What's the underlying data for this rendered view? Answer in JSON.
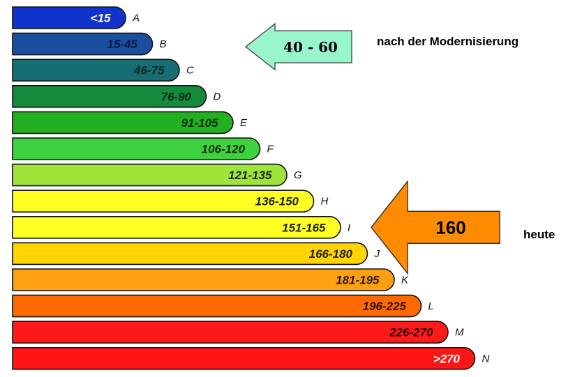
{
  "chart_data": {
    "type": "bar",
    "classes": [
      {
        "letter": "A",
        "range": "<15",
        "color": "#1133cc",
        "text_color": "#ffffff"
      },
      {
        "letter": "B",
        "range": "15-45",
        "color": "#1a4fa0",
        "text_color": "#0b1a40"
      },
      {
        "letter": "C",
        "range": "46-75",
        "color": "#176e72",
        "text_color": "#0b2a2a"
      },
      {
        "letter": "D",
        "range": "76-90",
        "color": "#138a3c",
        "text_color": "#0b2a14"
      },
      {
        "letter": "E",
        "range": "91-105",
        "color": "#22b022",
        "text_color": "#0b2a0b"
      },
      {
        "letter": "F",
        "range": "106-120",
        "color": "#3ed23e",
        "text_color": "#0b2a0b"
      },
      {
        "letter": "G",
        "range": "121-135",
        "color": "#9ee43a",
        "text_color": "#1a2a0b"
      },
      {
        "letter": "H",
        "range": "136-150",
        "color": "#ffff22",
        "text_color": "#222200"
      },
      {
        "letter": "I",
        "range": "151-165",
        "color": "#ffff22",
        "text_color": "#222200"
      },
      {
        "letter": "J",
        "range": "166-180",
        "color": "#ffd400",
        "text_color": "#222200"
      },
      {
        "letter": "K",
        "range": "181-195",
        "color": "#ffa010",
        "text_color": "#2a1a00"
      },
      {
        "letter": "L",
        "range": "196-225",
        "color": "#ff6a00",
        "text_color": "#2a0f00"
      },
      {
        "letter": "M",
        "range": "226-270",
        "color": "#ff1a1a",
        "text_color": "#2a0000"
      },
      {
        "letter": "N",
        "range": ">270",
        "color": "#ff1515",
        "text_color": "#ffffff"
      }
    ],
    "markers": [
      {
        "label": "40 - 60",
        "note": "nach der Modernisierung",
        "class": "B",
        "color": "#99f5cc"
      },
      {
        "label": "160",
        "note": "heute",
        "class": "I",
        "color": "#ff8c00"
      }
    ]
  }
}
